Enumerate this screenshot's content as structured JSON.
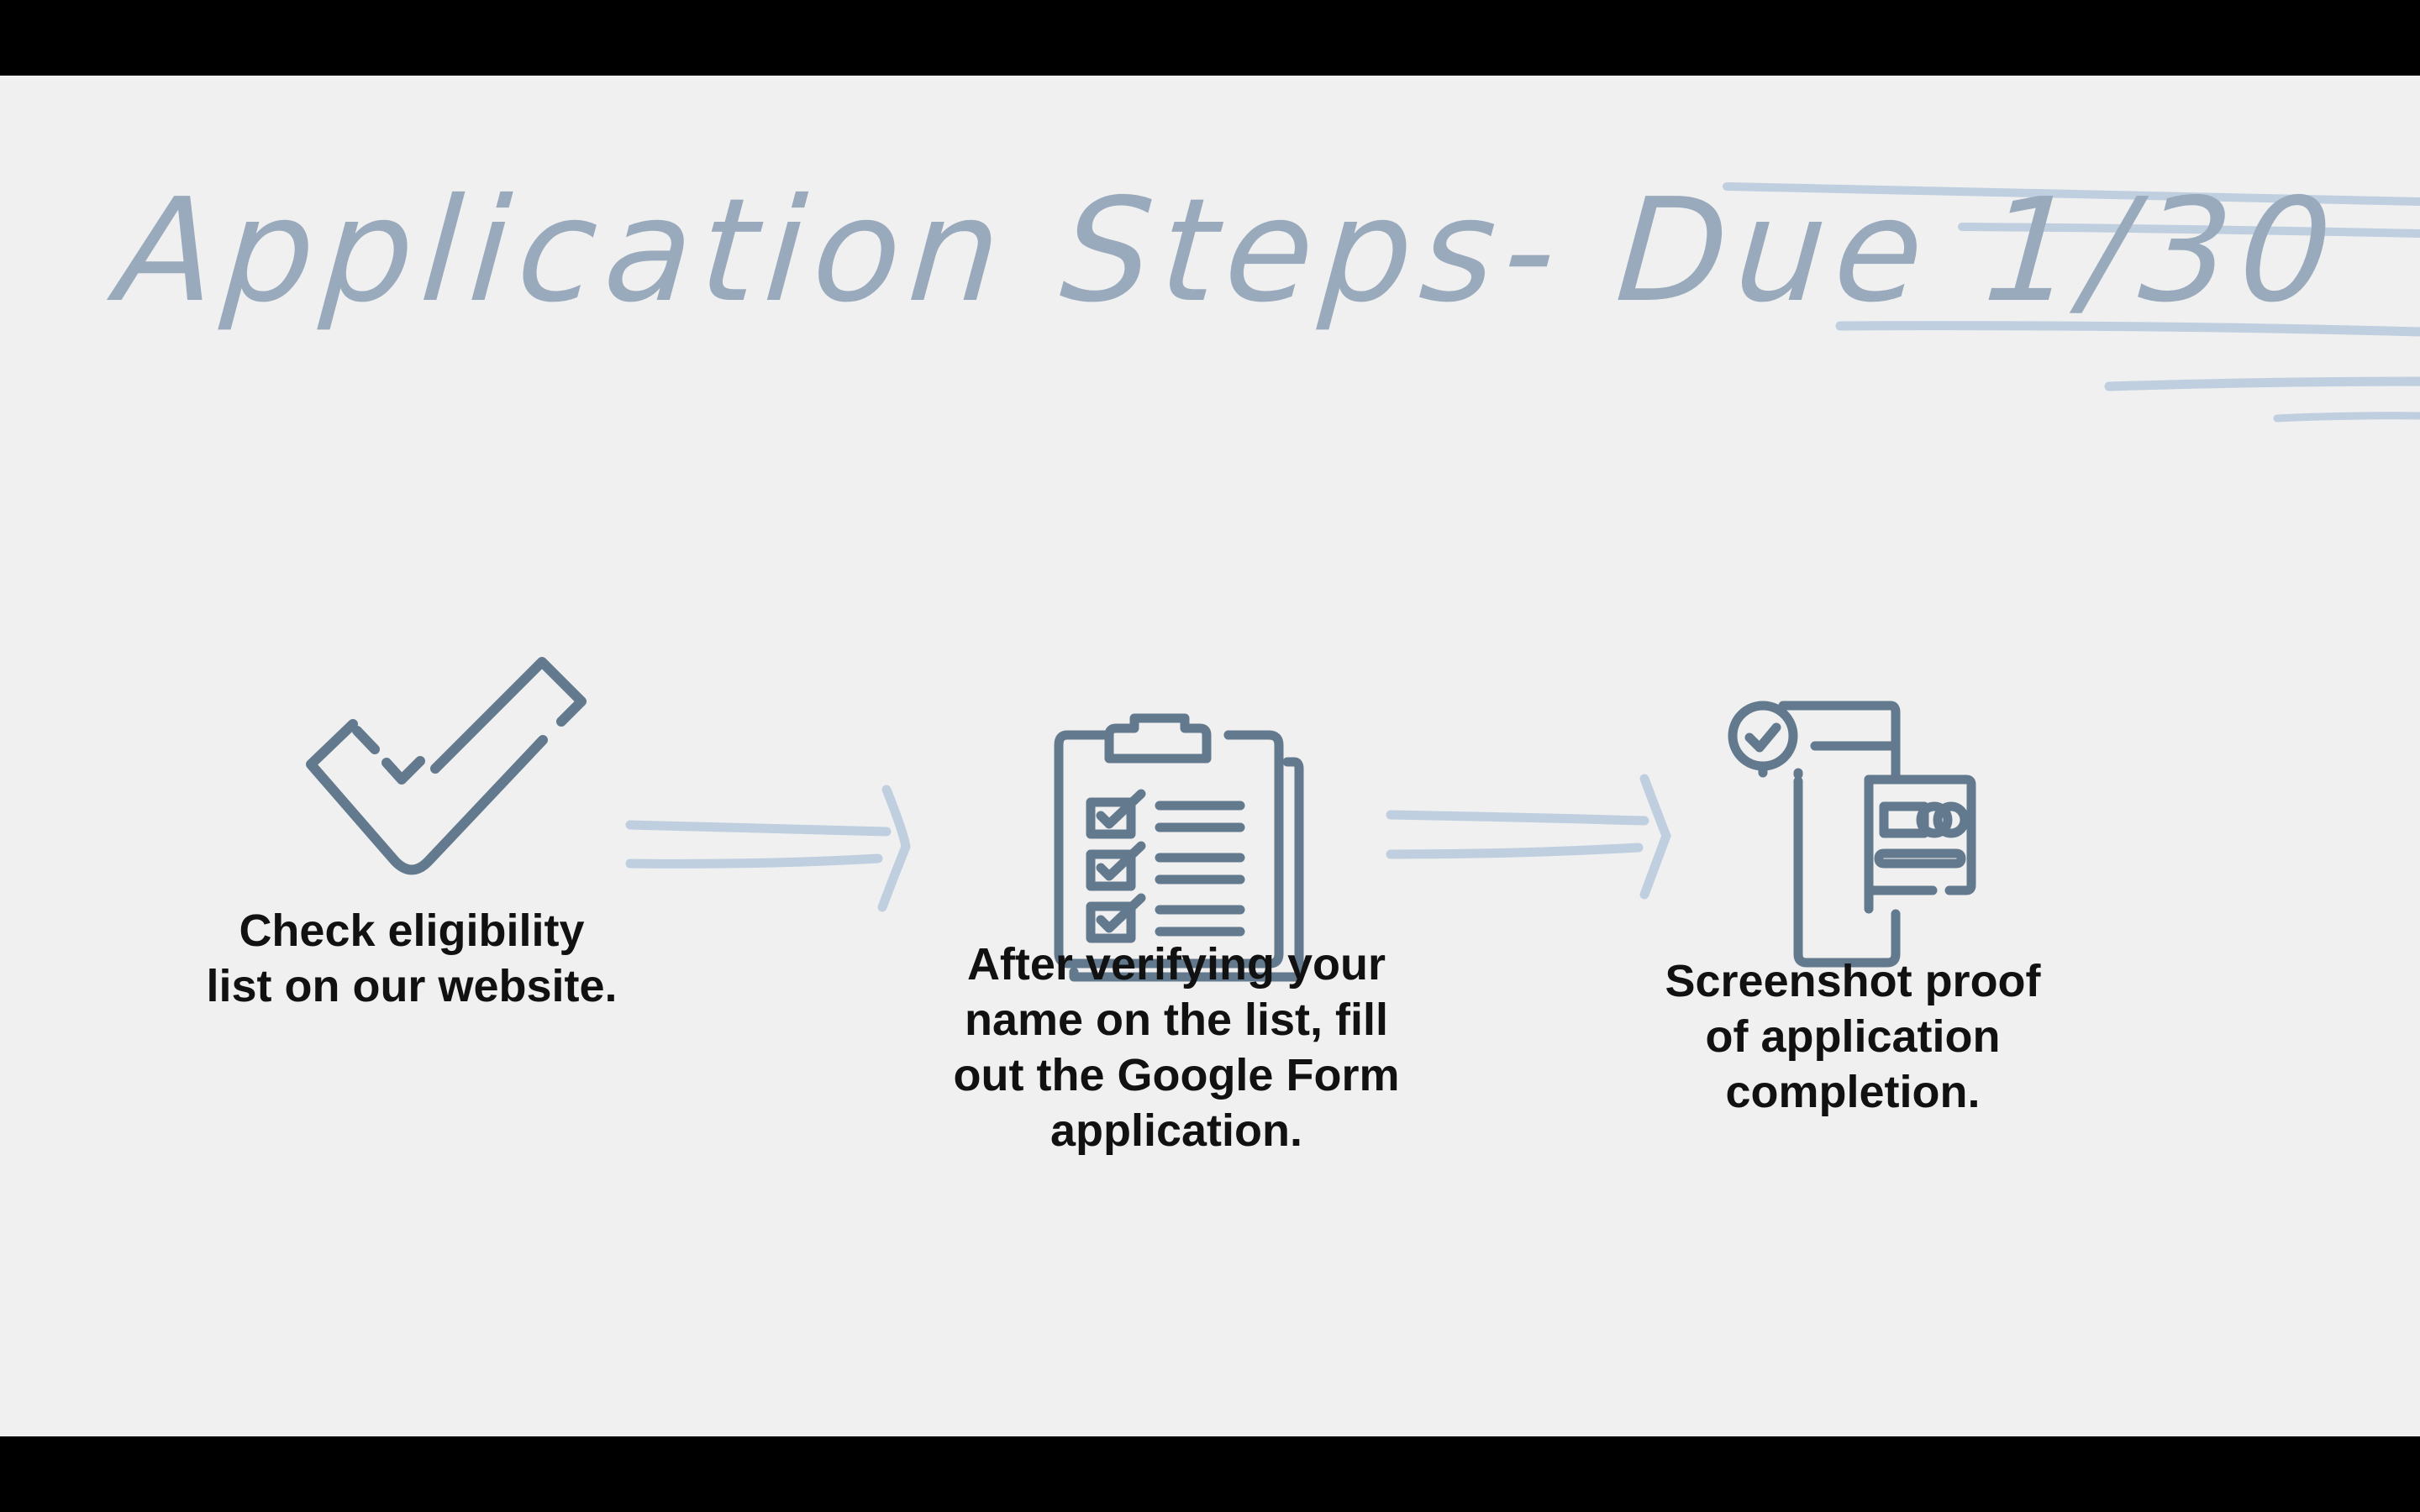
{
  "slide": {
    "title": "Application Steps- Due 1/30"
  },
  "steps": [
    {
      "icon": "checkmark-icon",
      "text": "Check eligibility list on our website."
    },
    {
      "icon": "clipboard-checklist-icon",
      "text": "After verifying your name on the list, fill out the Google Form application."
    },
    {
      "icon": "phone-payment-card-icon",
      "text": "Screenshot proof of application completion."
    }
  ],
  "colors": {
    "background": "#f0f0f0",
    "title": "#9aaabd",
    "icon_stroke": "#637a8e",
    "accent_strokes": "#bfcfe0",
    "text": "#111111",
    "letterbox": "#000000"
  }
}
